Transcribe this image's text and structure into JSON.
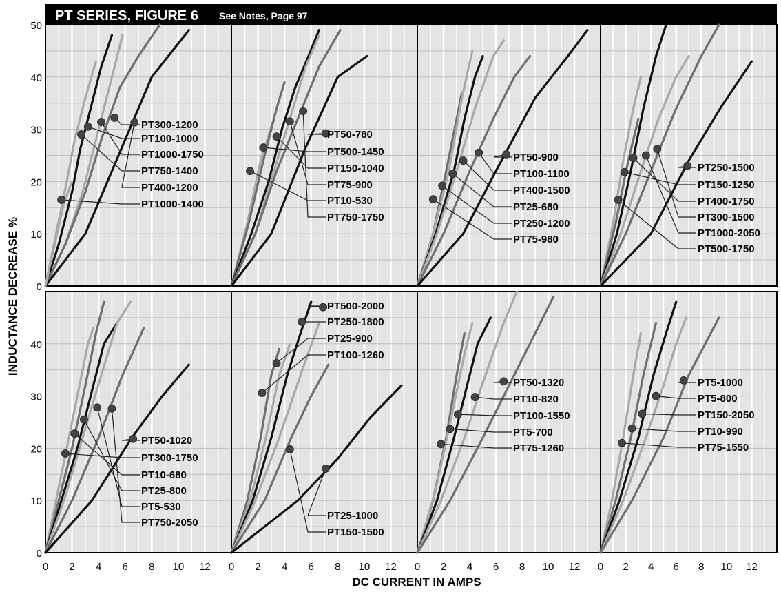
{
  "header": {
    "title": "PT SERIES, FIGURE 6",
    "note": "See Notes, Page 97"
  },
  "axes": {
    "ylabel": "INDUCTANCE DECREASE %",
    "xlabel": "DC CURRENT IN AMPS",
    "x_ticks": [
      "0",
      "2",
      "4",
      "6",
      "8",
      "10",
      "12"
    ],
    "y_ticks_top": [
      "0",
      "10",
      "20",
      "30",
      "40",
      "50"
    ],
    "y_ticks_bottom": [
      "0",
      "10",
      "20",
      "30",
      "40"
    ]
  },
  "colors": {
    "dark": "#111111",
    "mid": "#6f6f6f",
    "light": "#a9a9a9",
    "grid": "#bdbdbd",
    "panel_bg": "#e4e4e4"
  },
  "chart_data": [
    {
      "type": "line",
      "panel": 1,
      "xlim": [
        0,
        14
      ],
      "ylim": [
        0,
        50
      ],
      "series": [
        {
          "name": "PT300-1200",
          "shade": "light",
          "x": [
            0,
            0.8,
            1.6,
            2.2,
            3.0,
            3.8
          ],
          "y": [
            0,
            10,
            20,
            28,
            36,
            43
          ],
          "marker": [
            5.2,
            32.2
          ]
        },
        {
          "name": "PT100-1000",
          "shade": "dark",
          "x": [
            0,
            1.0,
            2.0,
            2.6,
            3.4,
            4.2,
            5.0
          ],
          "y": [
            0,
            8,
            18,
            26,
            34,
            42,
            48
          ],
          "marker": [
            3.2,
            30.5
          ]
        },
        {
          "name": "PT1000-1750",
          "shade": "light",
          "x": [
            0,
            1.5,
            2.8,
            3.8,
            4.8,
            5.8
          ],
          "y": [
            0,
            8,
            18,
            28,
            38,
            48
          ],
          "marker": [
            4.2,
            31.4
          ]
        },
        {
          "name": "PT750-1400",
          "shade": "mid",
          "x": [
            0,
            1.5,
            3.0,
            4.2,
            5.6,
            7.0,
            8.6
          ],
          "y": [
            0,
            8,
            18,
            28,
            38,
            44,
            50
          ],
          "marker": [
            2.7,
            29.0
          ]
        },
        {
          "name": "PT400-1200",
          "shade": "dark",
          "x": [
            0,
            3.0,
            5.5,
            8.0,
            10.8
          ],
          "y": [
            0,
            10,
            25,
            40,
            49
          ],
          "marker": [
            6.7,
            31.3
          ]
        },
        {
          "name": "PT1000-1400",
          "shade": "light",
          "x": [
            0,
            0.7,
            1.4,
            2.0
          ],
          "y": [
            0,
            8,
            16,
            20
          ],
          "marker": [
            1.2,
            16.5
          ]
        }
      ]
    },
    {
      "type": "line",
      "panel": 2,
      "xlim": [
        0,
        14
      ],
      "ylim": [
        0,
        50
      ],
      "series": [
        {
          "name": "PT50-780",
          "shade": "light",
          "x": [
            0,
            1.2,
            2.2,
            3.2
          ],
          "y": [
            0,
            12,
            24,
            32
          ],
          "marker": [
            7.1,
            29.2
          ]
        },
        {
          "name": "PT500-1450",
          "shade": "mid",
          "x": [
            0,
            1.3,
            2.4,
            3.4,
            4.0
          ],
          "y": [
            0,
            12,
            24,
            34,
            39
          ],
          "marker": [
            2.4,
            26.5
          ]
        },
        {
          "name": "PT150-1040",
          "shade": "dark",
          "x": [
            0,
            1.5,
            2.8,
            3.8,
            4.8,
            5.8,
            6.6
          ],
          "y": [
            0,
            10,
            20,
            30,
            38,
            44,
            49
          ],
          "marker": [
            3.4,
            28.6
          ]
        },
        {
          "name": "PT75-900",
          "shade": "light",
          "x": [
            0,
            1.8,
            3.2,
            4.4,
            5.6,
            6.6
          ],
          "y": [
            0,
            10,
            22,
            32,
            42,
            48
          ],
          "marker": [
            4.4,
            31.5
          ]
        },
        {
          "name": "PT10-530",
          "shade": "mid",
          "x": [
            0,
            1.8,
            3.4,
            5.0,
            6.6,
            8.2
          ],
          "y": [
            0,
            10,
            22,
            32,
            42,
            49
          ],
          "marker": [
            1.4,
            22.0
          ]
        },
        {
          "name": "PT750-1750",
          "shade": "dark",
          "x": [
            0,
            3.0,
            5.5,
            8.0,
            10.2
          ],
          "y": [
            0,
            10,
            26,
            40,
            44
          ],
          "marker": [
            5.4,
            33.5
          ]
        }
      ]
    },
    {
      "type": "line",
      "panel": 3,
      "xlim": [
        0,
        14
      ],
      "ylim": [
        0,
        50
      ],
      "series": [
        {
          "name": "PT50-900",
          "shade": "mid",
          "x": [
            0,
            1.2,
            2.2,
            3.0,
            3.4
          ],
          "y": [
            0,
            10,
            22,
            32,
            37
          ],
          "marker": [
            6.8,
            25.2
          ]
        },
        {
          "name": "PT100-1100",
          "shade": "light",
          "x": [
            0,
            1.2,
            2.4,
            3.4,
            4.2
          ],
          "y": [
            0,
            10,
            22,
            36,
            45
          ],
          "marker": [
            4.7,
            25.5
          ]
        },
        {
          "name": "PT400-1500",
          "shade": "dark",
          "x": [
            0,
            1.4,
            2.8,
            3.6,
            4.4,
            5.0
          ],
          "y": [
            0,
            10,
            22,
            32,
            40,
            44
          ],
          "marker": [
            3.5,
            24.0
          ]
        },
        {
          "name": "PT25-680",
          "shade": "light",
          "x": [
            0,
            1.5,
            3.0,
            4.4,
            5.8,
            6.6
          ],
          "y": [
            0,
            10,
            22,
            34,
            44,
            47
          ],
          "marker": [
            2.7,
            21.5
          ]
        },
        {
          "name": "PT250-1200",
          "shade": "mid",
          "x": [
            0,
            2.0,
            4.0,
            5.8,
            7.4,
            8.6
          ],
          "y": [
            0,
            10,
            22,
            32,
            40,
            44
          ],
          "marker": [
            1.9,
            19.2
          ]
        },
        {
          "name": "PT75-980",
          "shade": "dark",
          "x": [
            0,
            3.5,
            6.0,
            9.0,
            11.5,
            13.0
          ],
          "y": [
            0,
            10,
            22,
            36,
            44,
            49
          ],
          "marker": [
            1.2,
            16.6
          ]
        }
      ]
    },
    {
      "type": "line",
      "panel": 4,
      "xlim": [
        0,
        14
      ],
      "ylim": [
        0,
        50
      ],
      "series": [
        {
          "name": "PT250-1500",
          "shade": "light",
          "x": [
            0,
            1.0,
            1.8,
            2.6,
            3.2
          ],
          "y": [
            0,
            12,
            24,
            34,
            40
          ],
          "marker": [
            6.9,
            23.0
          ]
        },
        {
          "name": "PT150-1250",
          "shade": "mid",
          "x": [
            0,
            1.2,
            2.2,
            3.0
          ],
          "y": [
            0,
            12,
            24,
            32
          ],
          "marker": [
            1.9,
            21.8
          ]
        },
        {
          "name": "PT400-1750",
          "shade": "dark",
          "x": [
            0,
            1.3,
            2.4,
            3.4,
            4.4,
            5.2
          ],
          "y": [
            0,
            10,
            22,
            34,
            44,
            50
          ],
          "marker": [
            2.6,
            24.5
          ]
        },
        {
          "name": "PT300-1500",
          "shade": "light",
          "x": [
            0,
            1.6,
            3.2,
            4.6,
            6.0,
            7.0
          ],
          "y": [
            0,
            10,
            22,
            32,
            40,
            44
          ],
          "marker": [
            4.5,
            26.2
          ]
        },
        {
          "name": "PT1000-2050",
          "shade": "mid",
          "x": [
            0,
            2.0,
            4.0,
            6.0,
            8.0,
            9.4
          ],
          "y": [
            0,
            10,
            22,
            34,
            44,
            50
          ],
          "marker": [
            3.6,
            25.0
          ]
        },
        {
          "name": "PT500-1750",
          "shade": "dark",
          "x": [
            0,
            4.0,
            7.0,
            9.5,
            12.0
          ],
          "y": [
            0,
            10,
            24,
            34,
            43
          ],
          "marker": [
            1.4,
            16.5
          ]
        }
      ]
    },
    {
      "type": "line",
      "panel": 5,
      "xlim": [
        0,
        14
      ],
      "ylim": [
        0,
        50
      ],
      "series": [
        {
          "name": "PT50-1020",
          "shade": "light",
          "x": [
            0,
            0.8,
            1.6,
            2.4,
            3.2,
            3.6
          ],
          "y": [
            0,
            10,
            20,
            30,
            40,
            43
          ],
          "marker": [
            6.6,
            21.8
          ]
        },
        {
          "name": "PT300-1750",
          "shade": "mid",
          "x": [
            0,
            1.0,
            2.0,
            3.0,
            3.8,
            4.4
          ],
          "y": [
            0,
            10,
            20,
            32,
            42,
            48
          ],
          "marker": [
            1.5,
            19.0
          ]
        },
        {
          "name": "PT10-680",
          "shade": "dark",
          "x": [
            0,
            1.2,
            2.4,
            3.4,
            4.4,
            5.4
          ],
          "y": [
            0,
            10,
            20,
            30,
            40,
            44
          ],
          "marker": [
            2.2,
            22.8
          ]
        },
        {
          "name": "PT25-800",
          "shade": "light",
          "x": [
            0,
            1.4,
            2.8,
            4.2,
            5.4,
            6.4
          ],
          "y": [
            0,
            10,
            22,
            34,
            44,
            48
          ],
          "marker": [
            2.9,
            25.5
          ]
        },
        {
          "name": "PT5-530",
          "shade": "mid",
          "x": [
            0,
            2.0,
            4.0,
            5.8,
            7.4
          ],
          "y": [
            0,
            10,
            22,
            34,
            43
          ],
          "marker": [
            3.9,
            27.8
          ]
        },
        {
          "name": "PT750-2050",
          "shade": "dark",
          "x": [
            0,
            3.5,
            6.5,
            8.8,
            10.8
          ],
          "y": [
            0,
            10,
            22,
            30,
            36
          ],
          "marker": [
            5.0,
            27.6
          ]
        }
      ]
    },
    {
      "type": "line",
      "panel": 6,
      "xlim": [
        0,
        14
      ],
      "ylim": [
        0,
        50
      ],
      "series": [
        {
          "name": "PT500-2000",
          "shade": "mid",
          "x": [
            0,
            1.2,
            2.2,
            3.0,
            3.6
          ],
          "y": [
            0,
            10,
            22,
            34,
            39
          ],
          "marker": [
            6.9,
            47.0
          ]
        },
        {
          "name": "PT250-1800",
          "shade": "light",
          "x": [
            0,
            1.4,
            2.6,
            3.6,
            4.4
          ],
          "y": [
            0,
            10,
            22,
            34,
            40
          ],
          "marker": [
            5.3,
            44.2
          ]
        },
        {
          "name": "PT25-900",
          "shade": "dark",
          "x": [
            0,
            1.6,
            3.0,
            4.2,
            5.2,
            6.0
          ],
          "y": [
            0,
            10,
            22,
            34,
            42,
            48
          ],
          "marker": [
            3.4,
            36.3
          ]
        },
        {
          "name": "PT100-1260",
          "shade": "light",
          "x": [
            0,
            1.8,
            3.6,
            5.2,
            6.6
          ],
          "y": [
            0,
            10,
            22,
            34,
            44
          ],
          "marker": [
            2.3,
            30.6
          ]
        },
        {
          "name": "PT25-1000",
          "shade": "mid",
          "x": [
            0,
            2.5,
            4.5,
            6.0,
            7.3
          ],
          "y": [
            0,
            10,
            22,
            30,
            36
          ],
          "marker": [
            7.1,
            16.1
          ]
        },
        {
          "name": "PT150-1500",
          "shade": "dark",
          "x": [
            0,
            5.0,
            8.0,
            10.5,
            12.8
          ],
          "y": [
            0,
            10,
            18,
            26,
            32
          ],
          "marker": [
            4.4,
            19.8
          ]
        }
      ]
    },
    {
      "type": "line",
      "panel": 7,
      "xlim": [
        0,
        14
      ],
      "ylim": [
        0,
        50
      ],
      "series": [
        {
          "name": "PT50-1320",
          "shade": "mid",
          "x": [
            0,
            1.2,
            2.2,
            3.0,
            3.6
          ],
          "y": [
            0,
            10,
            22,
            34,
            42
          ],
          "marker": [
            6.6,
            32.8
          ]
        },
        {
          "name": "PT10-820",
          "shade": "light",
          "x": [
            0,
            1.4,
            2.6,
            3.6,
            4.2
          ],
          "y": [
            0,
            12,
            26,
            38,
            44
          ],
          "marker": [
            4.4,
            29.8
          ]
        },
        {
          "name": "PT100-1550",
          "shade": "dark",
          "x": [
            0,
            1.5,
            2.8,
            3.8,
            4.6,
            5.6
          ],
          "y": [
            0,
            10,
            22,
            32,
            40,
            45
          ],
          "marker": [
            3.1,
            26.5
          ]
        },
        {
          "name": "PT5-700",
          "shade": "light",
          "x": [
            0,
            1.8,
            3.6,
            5.2,
            6.6,
            7.6
          ],
          "y": [
            0,
            10,
            22,
            34,
            44,
            50
          ],
          "marker": [
            2.5,
            23.7
          ]
        },
        {
          "name": "PT75-1260",
          "shade": "mid",
          "x": [
            0,
            2.5,
            5.0,
            7.0,
            9.0,
            10.4
          ],
          "y": [
            0,
            10,
            22,
            32,
            42,
            49
          ],
          "marker": [
            1.8,
            20.8
          ]
        }
      ]
    },
    {
      "type": "line",
      "panel": 8,
      "xlim": [
        0,
        14
      ],
      "ylim": [
        0,
        50
      ],
      "series": [
        {
          "name": "PT5-1000",
          "shade": "light",
          "x": [
            0,
            0.9,
            1.8,
            2.6,
            3.2
          ],
          "y": [
            0,
            10,
            22,
            34,
            42
          ],
          "marker": [
            6.6,
            33.0
          ]
        },
        {
          "name": "PT5-800",
          "shade": "mid",
          "x": [
            0,
            1.2,
            2.4,
            3.4,
            4.4
          ],
          "y": [
            0,
            10,
            22,
            34,
            44
          ],
          "marker": [
            4.4,
            30.0
          ]
        },
        {
          "name": "PT150-2050",
          "shade": "dark",
          "x": [
            0,
            1.5,
            3.0,
            4.2,
            5.2,
            6.0
          ],
          "y": [
            0,
            10,
            22,
            34,
            42,
            48
          ],
          "marker": [
            3.3,
            26.6
          ]
        },
        {
          "name": "PT10-990",
          "shade": "light",
          "x": [
            0,
            1.8,
            3.6,
            5.0,
            6.0,
            6.8
          ],
          "y": [
            0,
            10,
            22,
            32,
            40,
            45
          ],
          "marker": [
            2.5,
            23.8
          ]
        },
        {
          "name": "PT75-1550",
          "shade": "mid",
          "x": [
            0,
            2.5,
            5.0,
            7.0,
            9.4
          ],
          "y": [
            0,
            10,
            22,
            34,
            45
          ],
          "marker": [
            1.7,
            21.0
          ]
        }
      ]
    }
  ]
}
